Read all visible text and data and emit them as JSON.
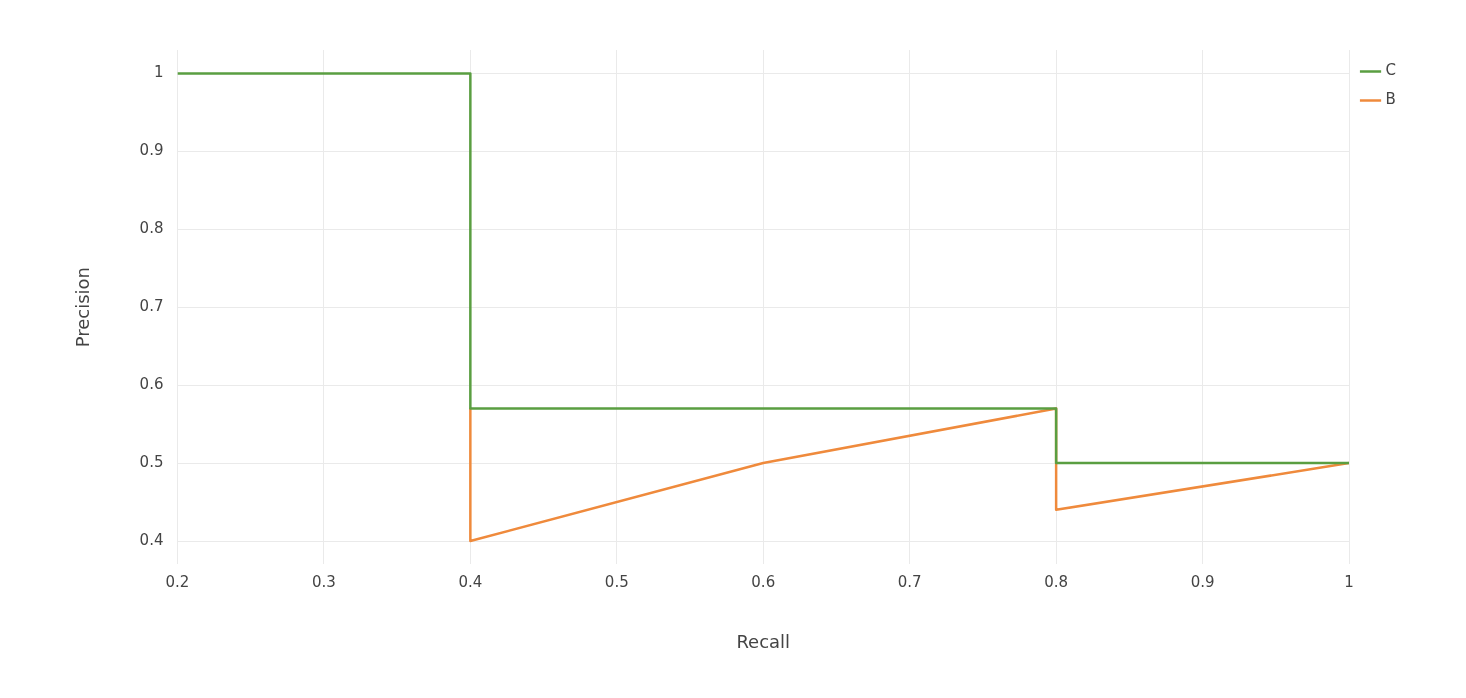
{
  "chart_data": {
    "type": "line",
    "xlabel": "Recall",
    "ylabel": "Precision",
    "xlim": [
      0.2,
      1
    ],
    "xticks": [
      0.2,
      0.3,
      0.4,
      0.5,
      0.6,
      0.7,
      0.8,
      0.9,
      1
    ],
    "ylim": [
      0.37,
      1.03
    ],
    "yticks": [
      0.4,
      0.5,
      0.6,
      0.7,
      0.8,
      0.9,
      1
    ],
    "grid": true,
    "legend": "top right",
    "series": [
      {
        "name": "B",
        "color": "#ef8a3c",
        "x": [
          0.4,
          0.4,
          0.6,
          0.8,
          0.8,
          1
        ],
        "values": [
          0.57,
          0.4,
          0.5,
          0.57,
          0.44,
          0.5
        ]
      },
      {
        "name": "C",
        "color": "#5a9e41",
        "x": [
          0.2,
          0.4,
          0.4,
          0.8,
          0.8,
          1
        ],
        "values": [
          1,
          1,
          0.57,
          0.57,
          0.5,
          0.5
        ]
      }
    ]
  }
}
